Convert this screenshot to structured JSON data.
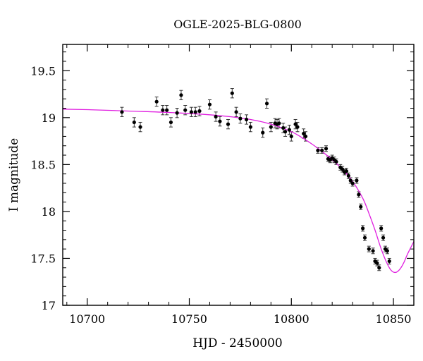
{
  "chart_data": {
    "type": "scatter",
    "title": "OGLE-2025-BLG-0800",
    "xlabel": "HJD - 2450000",
    "ylabel": "I magnitude",
    "xlim": [
      10688,
      10860
    ],
    "ylim": [
      19.78,
      17.0
    ],
    "y_inverted": true,
    "xticks": [
      10700,
      10750,
      10800,
      10850
    ],
    "xtick_labels": [
      "10700",
      "10750",
      "10800",
      "10850"
    ],
    "yticks": [
      17,
      17.5,
      18,
      18.5,
      19,
      19.5
    ],
    "ytick_labels": [
      "17",
      "17.5",
      "18",
      "18.5",
      "19",
      "19.5"
    ],
    "grid": false,
    "colors": {
      "model": "#e020e0",
      "points": "#000000",
      "errorbars": "#333333"
    },
    "series": [
      {
        "kind": "points",
        "x": [
          10717,
          10723,
          10726,
          10734,
          10737,
          10739,
          10741,
          10744,
          10746,
          10748,
          10751,
          10753,
          10755,
          10760,
          10763,
          10765,
          10769,
          10771,
          10773,
          10775,
          10778,
          10780,
          10786,
          10788,
          10790,
          10792,
          10793,
          10794,
          10796,
          10797,
          10799,
          10800,
          10802,
          10803,
          10806,
          10807,
          10813,
          10815,
          10817,
          10818,
          10819,
          10820,
          10821,
          10822,
          10824,
          10825,
          10826,
          10827,
          10828,
          10829,
          10830,
          10832,
          10833,
          10834,
          10835,
          10836,
          10838,
          10840,
          10841,
          10842,
          10843,
          10844,
          10845,
          10846,
          10847,
          10848
        ],
        "y": [
          19.06,
          18.95,
          18.9,
          19.17,
          19.08,
          19.08,
          18.95,
          19.05,
          19.24,
          19.08,
          19.06,
          19.06,
          19.07,
          19.14,
          19.01,
          18.96,
          18.93,
          19.26,
          19.06,
          18.99,
          18.98,
          18.9,
          18.84,
          19.15,
          18.9,
          18.94,
          18.93,
          18.94,
          18.89,
          18.85,
          18.87,
          18.8,
          18.93,
          18.9,
          18.83,
          18.8,
          18.65,
          18.65,
          18.67,
          18.56,
          18.55,
          18.57,
          18.55,
          18.53,
          18.47,
          18.45,
          18.42,
          18.43,
          18.38,
          18.33,
          18.3,
          18.33,
          18.18,
          18.05,
          17.82,
          17.72,
          17.6,
          17.58,
          17.47,
          17.45,
          17.4,
          17.82,
          17.72,
          17.6,
          17.58,
          17.47
        ],
        "yerr": [
          0.05,
          0.05,
          0.05,
          0.05,
          0.05,
          0.05,
          0.05,
          0.05,
          0.05,
          0.05,
          0.05,
          0.05,
          0.05,
          0.05,
          0.05,
          0.05,
          0.05,
          0.05,
          0.05,
          0.05,
          0.05,
          0.05,
          0.05,
          0.05,
          0.05,
          0.05,
          0.05,
          0.05,
          0.05,
          0.05,
          0.05,
          0.05,
          0.05,
          0.05,
          0.05,
          0.05,
          0.03,
          0.03,
          0.03,
          0.03,
          0.03,
          0.03,
          0.03,
          0.03,
          0.03,
          0.03,
          0.03,
          0.03,
          0.03,
          0.03,
          0.03,
          0.03,
          0.03,
          0.03,
          0.03,
          0.03,
          0.03,
          0.03,
          0.03,
          0.03,
          0.03,
          0.03,
          0.03,
          0.03,
          0.03,
          0.03
        ]
      },
      {
        "kind": "model",
        "x": [
          10688,
          10700,
          10720,
          10740,
          10760,
          10770,
          10780,
          10790,
          10800,
          10805,
          10810,
          10815,
          10820,
          10825,
          10830,
          10835,
          10838,
          10841,
          10844,
          10847,
          10849,
          10851,
          10853,
          10855,
          10857,
          10860
        ],
        "y": [
          19.09,
          19.085,
          19.07,
          19.055,
          19.03,
          19.01,
          18.98,
          18.93,
          18.85,
          18.79,
          18.72,
          18.64,
          18.55,
          18.45,
          18.32,
          18.14,
          17.98,
          17.8,
          17.6,
          17.44,
          17.37,
          17.35,
          17.38,
          17.45,
          17.55,
          17.68
        ]
      }
    ]
  }
}
